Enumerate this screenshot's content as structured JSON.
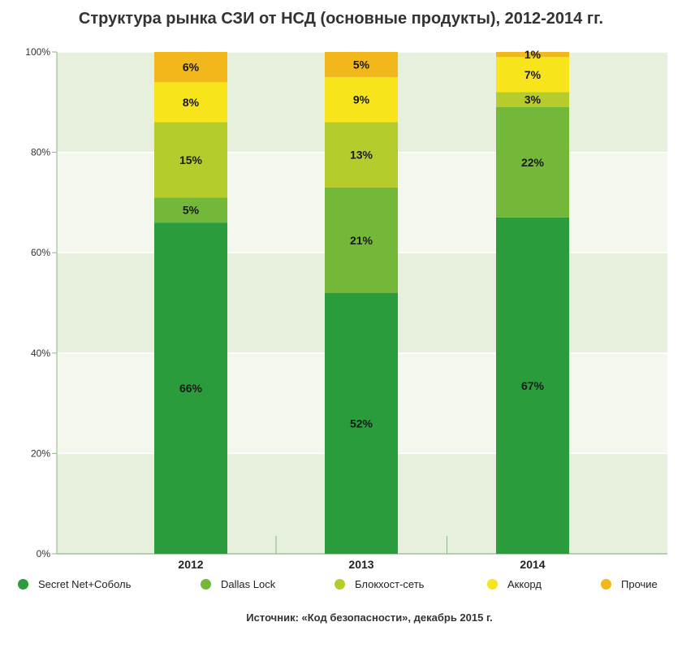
{
  "title": "Структура рынка СЗИ от НСД (основные продукты), 2012-2014 гг.",
  "source": "Источник: «Код безопасности», декабрь 2015 г.",
  "chart_data": {
    "type": "bar",
    "stacked": true,
    "title": "Структура рынка СЗИ от НСД (основные продукты), 2012-2014 гг.",
    "xlabel": "",
    "ylabel": "",
    "ylim": [
      0,
      100
    ],
    "y_ticks": [
      "0%",
      "20%",
      "40%",
      "60%",
      "80%",
      "100%"
    ],
    "categories": [
      "2012",
      "2013",
      "2014"
    ],
    "series": [
      {
        "name": "Secret Net+Соболь",
        "color": "#2a9c3c",
        "values": [
          66,
          52,
          67
        ],
        "labels": [
          "66%",
          "52%",
          "67%"
        ]
      },
      {
        "name": "Dallas Lock",
        "color": "#74b83a",
        "values": [
          5,
          21,
          22
        ],
        "labels": [
          "5%",
          "21%",
          "22%"
        ]
      },
      {
        "name": "Блокхост-сеть",
        "color": "#b5cc2c",
        "values": [
          15,
          13,
          3
        ],
        "labels": [
          "15%",
          "13%",
          "3%"
        ]
      },
      {
        "name": "Аккорд",
        "color": "#f7e41b",
        "values": [
          8,
          9,
          7
        ],
        "labels": [
          "8%",
          "9%",
          "7%"
        ]
      },
      {
        "name": "Прочие",
        "color": "#f1b71b",
        "values": [
          6,
          5,
          1
        ],
        "labels": [
          "6%",
          "5%",
          "1%"
        ]
      }
    ],
    "legend_position": "bottom"
  }
}
